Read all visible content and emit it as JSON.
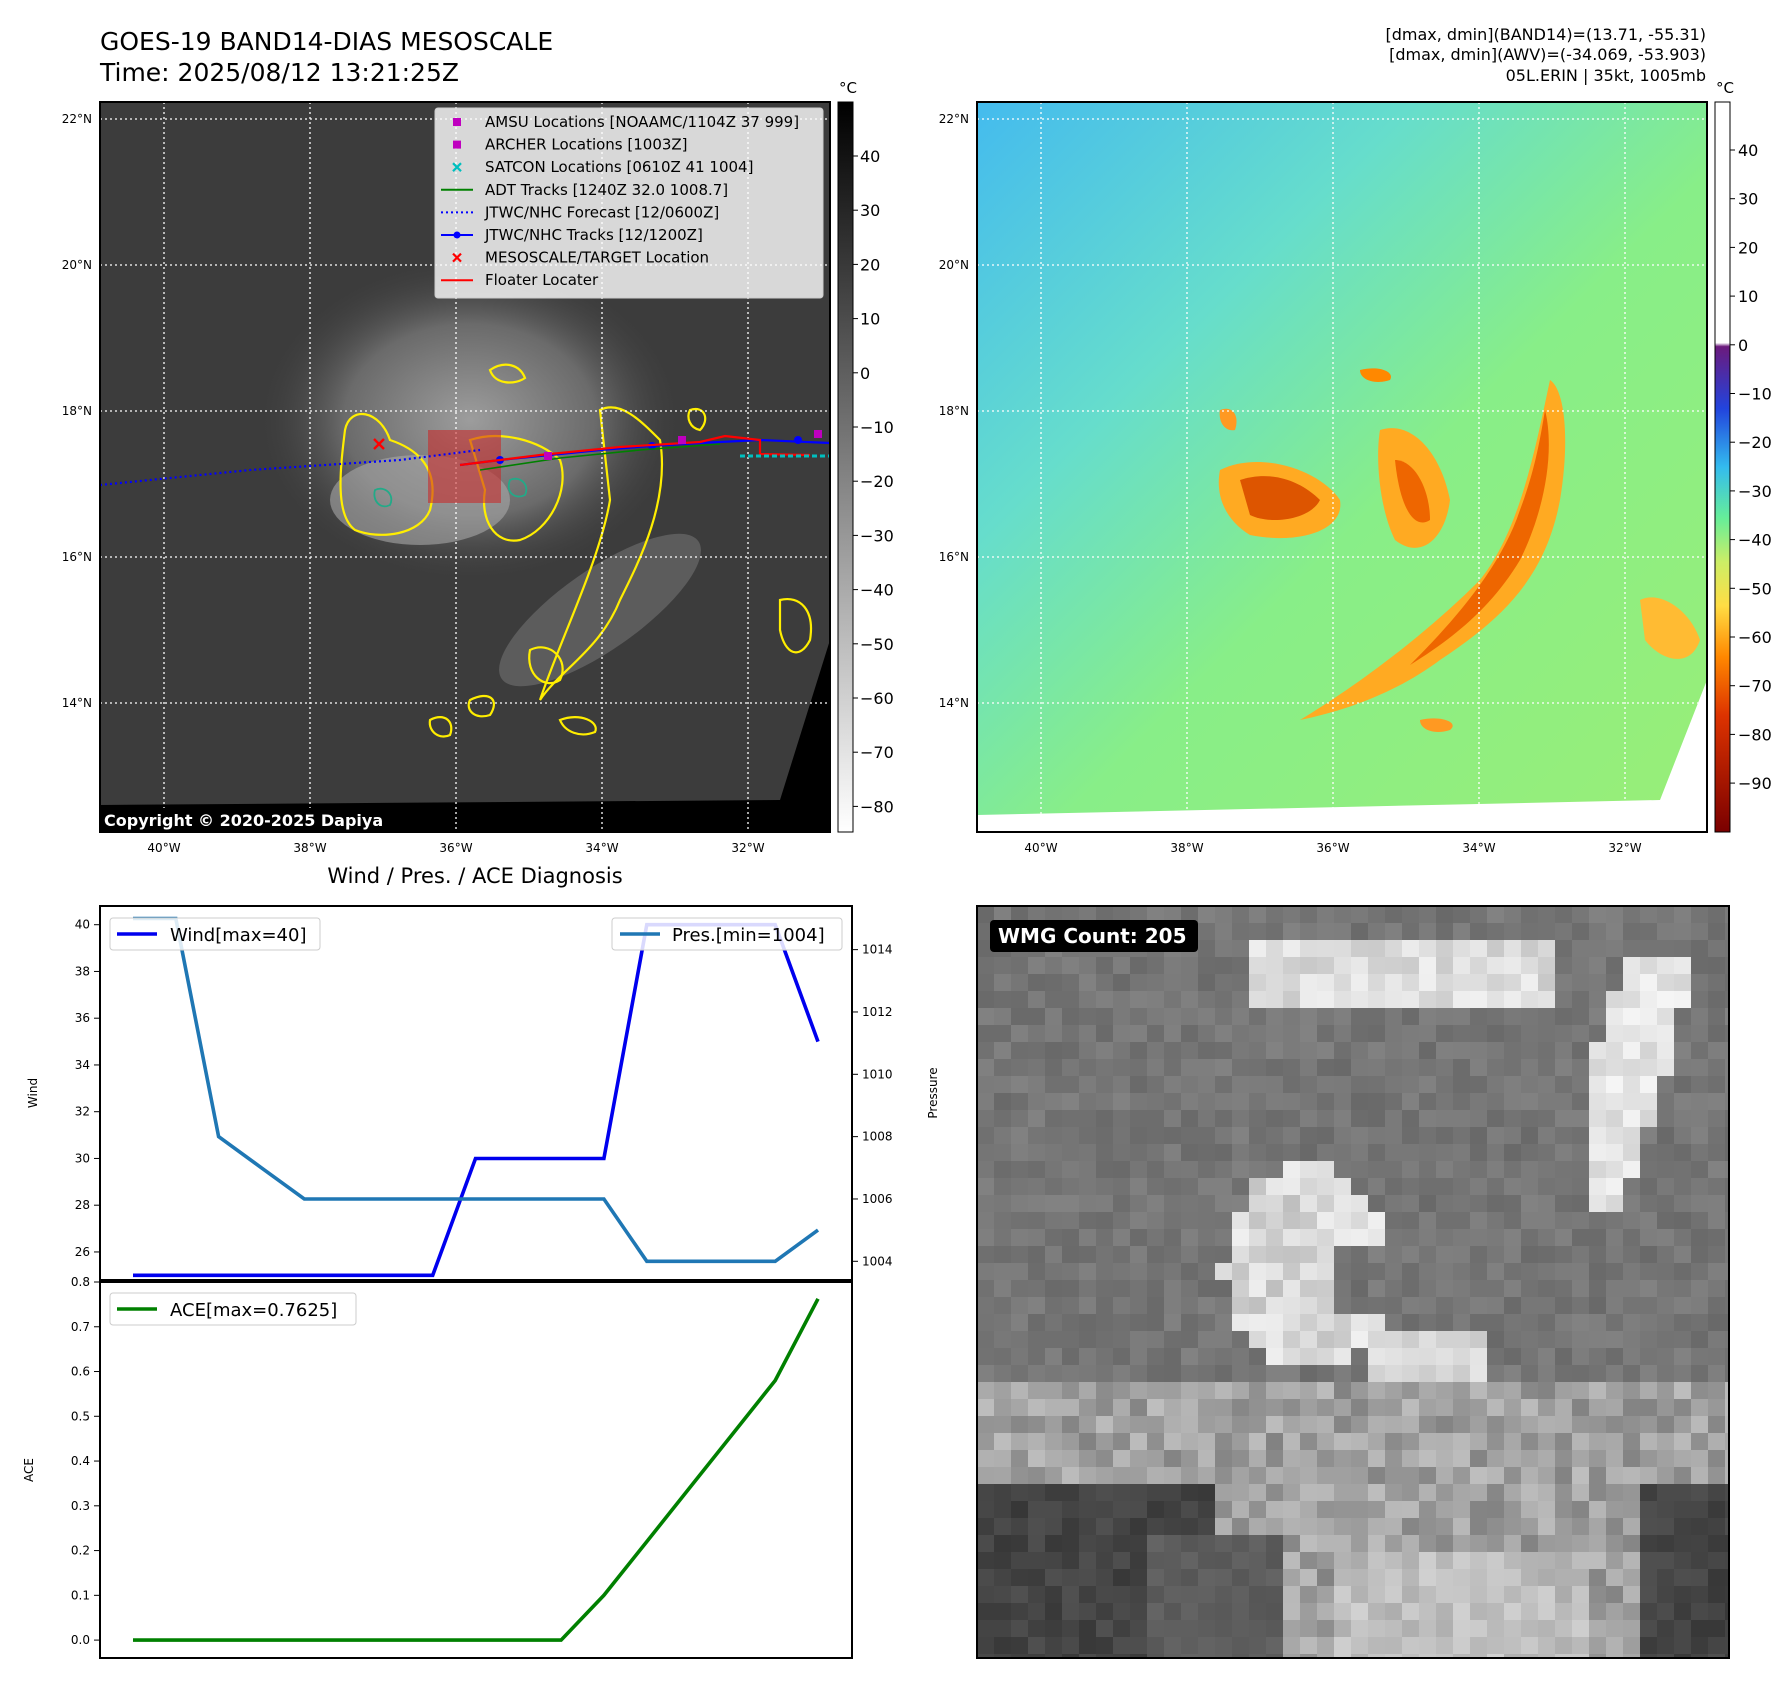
{
  "header": {
    "title": "GOES-19 BAND14-DIAS MESOSCALE",
    "time": "Time: 2025/08/12 13:21:25Z",
    "stats_band14": "[dmax, dmin](BAND14)=(13.71, -55.31)",
    "stats_awv": "[dmax, dmin](AWV)=(-34.069, -53.903)",
    "storm": "05L.ERIN | 35kt, 1005mb"
  },
  "copyright": "Copyright © 2020-2025 Dapiya",
  "map_axes": {
    "lat_ticks": [
      "22°N",
      "20°N",
      "18°N",
      "16°N",
      "14°N"
    ],
    "lon_ticks": [
      "40°W",
      "38°W",
      "36°W",
      "34°W",
      "32°W"
    ]
  },
  "colorbars": {
    "unit": "°C",
    "ir_ticks": [
      "40",
      "30",
      "20",
      "10",
      "0",
      "−10",
      "−20",
      "−30",
      "−40",
      "−50",
      "−60",
      "−70",
      "−80"
    ],
    "awv_ticks": [
      "40",
      "30",
      "20",
      "10",
      "0",
      "−10",
      "−20",
      "−30",
      "−40",
      "−50",
      "−60",
      "−70",
      "−80",
      "−90"
    ]
  },
  "legend": {
    "items": [
      {
        "label": "AMSU Locations [NOAAMC/1104Z 37 999]",
        "marker": "square",
        "color": "#bf00bf"
      },
      {
        "label": "ARCHER Locations [1003Z]",
        "marker": "square",
        "color": "#bf00bf"
      },
      {
        "label": "SATCON Locations [0610Z 41 1004]",
        "marker": "x",
        "color": "#00bfbf"
      },
      {
        "label": "ADT Tracks [1240Z 32.0 1008.7]",
        "marker": "line",
        "color": "#008000"
      },
      {
        "label": "JTWC/NHC Forecast [12/0600Z]",
        "marker": "dotted",
        "color": "#0000ff"
      },
      {
        "label": "JTWC/NHC Tracks [12/1200Z]",
        "marker": "line-dot",
        "color": "#0000ff"
      },
      {
        "label": "MESOSCALE/TARGET Location",
        "marker": "x",
        "color": "#ff0000"
      },
      {
        "label": "Floater Locater",
        "marker": "line",
        "color": "#ff0000"
      }
    ]
  },
  "wmg": {
    "label": "WMG Count: 205"
  },
  "chart_data": [
    {
      "type": "line",
      "title": "Wind / Pres. / ACE Diagnosis",
      "series": [
        {
          "name": "Wind[max=40]",
          "axis": "left",
          "color": "#0000ee",
          "values": [
            25,
            25,
            25,
            25,
            25,
            25,
            25,
            25,
            30,
            30,
            30,
            30,
            40,
            40,
            40,
            40,
            35
          ]
        },
        {
          "name": "Pres.[min=1004]",
          "axis": "right",
          "color": "#1f77b4",
          "values": [
            1015,
            1015,
            1008,
            1007,
            1006,
            1006,
            1006,
            1006,
            1006,
            1006,
            1006,
            1006,
            1004,
            1004,
            1004,
            1004,
            1005
          ]
        }
      ],
      "ylabel": "Wind",
      "y2label": "Pressure",
      "ylim": [
        24.8,
        40.8
      ],
      "y2lim": [
        1003.4,
        1015.4
      ],
      "yticks": [
        26,
        28,
        30,
        32,
        34,
        36,
        38,
        40
      ],
      "y2ticks": [
        1004,
        1006,
        1008,
        1010,
        1012,
        1014
      ]
    },
    {
      "type": "line",
      "series": [
        {
          "name": "ACE[max=0.7625]",
          "color": "#008000",
          "values": [
            0,
            0,
            0,
            0,
            0,
            0,
            0,
            0,
            0,
            0,
            0,
            0.1,
            0.22,
            0.34,
            0.46,
            0.58,
            0.7625
          ]
        }
      ],
      "ylabel": "ACE",
      "ylim": [
        -0.04,
        0.8
      ],
      "yticks": [
        0.0,
        0.1,
        0.2,
        0.3,
        0.4,
        0.5,
        0.6,
        0.7,
        0.8
      ]
    }
  ]
}
